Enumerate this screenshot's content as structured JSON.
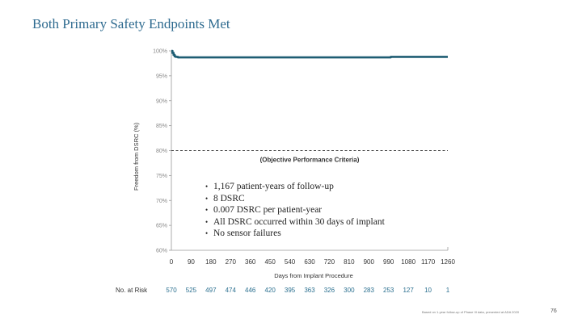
{
  "slide": {
    "title": "Both Primary Safety Endpoints Met",
    "footnote": "Based on 1-year follow-up of Phase III data, presented at ADA 2020",
    "page_number": "76"
  },
  "bullets": [
    "1,167 patient-years of follow-up",
    "8 DSRC",
    "0.007 DSRC per patient-year",
    "All DSRC occurred within 30 days of implant",
    "No sensor failures"
  ],
  "chart_data": {
    "type": "line",
    "title": "",
    "xlabel": "Days from Implant Procedure",
    "ylabel": "Freedom from DSRC (%)",
    "xlim": [
      0,
      1260
    ],
    "ylim": [
      60,
      100
    ],
    "xticks": [
      0,
      90,
      180,
      270,
      360,
      450,
      540,
      630,
      720,
      810,
      900,
      990,
      1080,
      1170,
      1260
    ],
    "yticks": [
      60,
      65,
      70,
      75,
      80,
      85,
      90,
      95,
      100
    ],
    "ytick_labels": [
      "60%",
      "65%",
      "70%",
      "75%",
      "80%",
      "85%",
      "90%",
      "95%",
      "100%"
    ],
    "series": [
      {
        "color": "#1e5d73",
        "x": [
          0,
          5,
          10,
          15,
          20,
          30,
          60,
          200,
          400,
          600,
          800,
          1000,
          1200,
          1260
        ],
        "y": [
          100,
          99.6,
          99.2,
          98.9,
          98.8,
          98.7,
          98.7,
          98.7,
          98.7,
          98.7,
          98.7,
          98.8,
          98.8,
          98.8
        ]
      }
    ],
    "reference_line": {
      "y": 80,
      "label": "(Objective Performance Criteria)"
    },
    "at_risk": {
      "label": "No. at Risk",
      "values": [
        570,
        525,
        497,
        474,
        446,
        420,
        395,
        363,
        326,
        300,
        283,
        253,
        127,
        10,
        1
      ],
      "x": [
        0,
        90,
        180,
        270,
        360,
        450,
        540,
        630,
        720,
        810,
        900,
        990,
        1080,
        1170,
        1260
      ]
    },
    "grid": false
  }
}
